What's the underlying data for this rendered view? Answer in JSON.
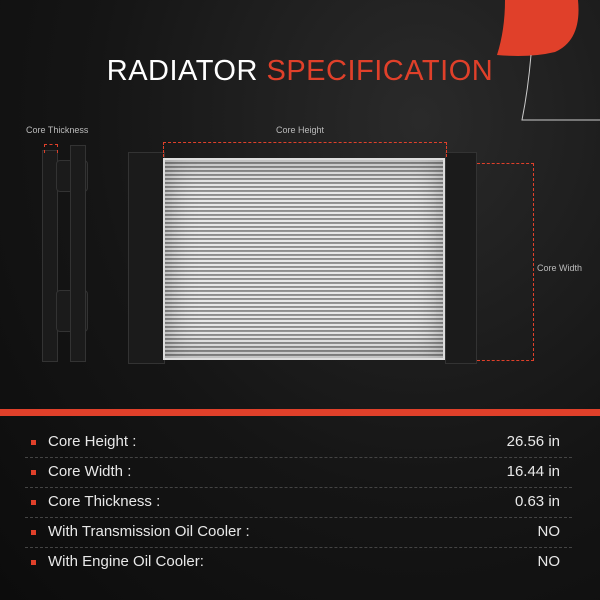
{
  "title": {
    "part1": "RADIATOR",
    "part2": "SPECIFICATION"
  },
  "diagram_labels": {
    "core_thickness": "Core Thickness",
    "core_height": "Core Height",
    "core_width": "Core Width"
  },
  "specs": [
    {
      "label": "Core Height :",
      "value": "26.56 in"
    },
    {
      "label": "Core Width :",
      "value": "16.44 in"
    },
    {
      "label": "Core Thickness :",
      "value": "0.63 in"
    },
    {
      "label": "With Transmission Oil Cooler :",
      "value": "NO"
    },
    {
      "label": "With Engine Oil Cooler:",
      "value": "NO"
    }
  ],
  "colors": {
    "accent": "#e0402a",
    "background": "#151515"
  }
}
